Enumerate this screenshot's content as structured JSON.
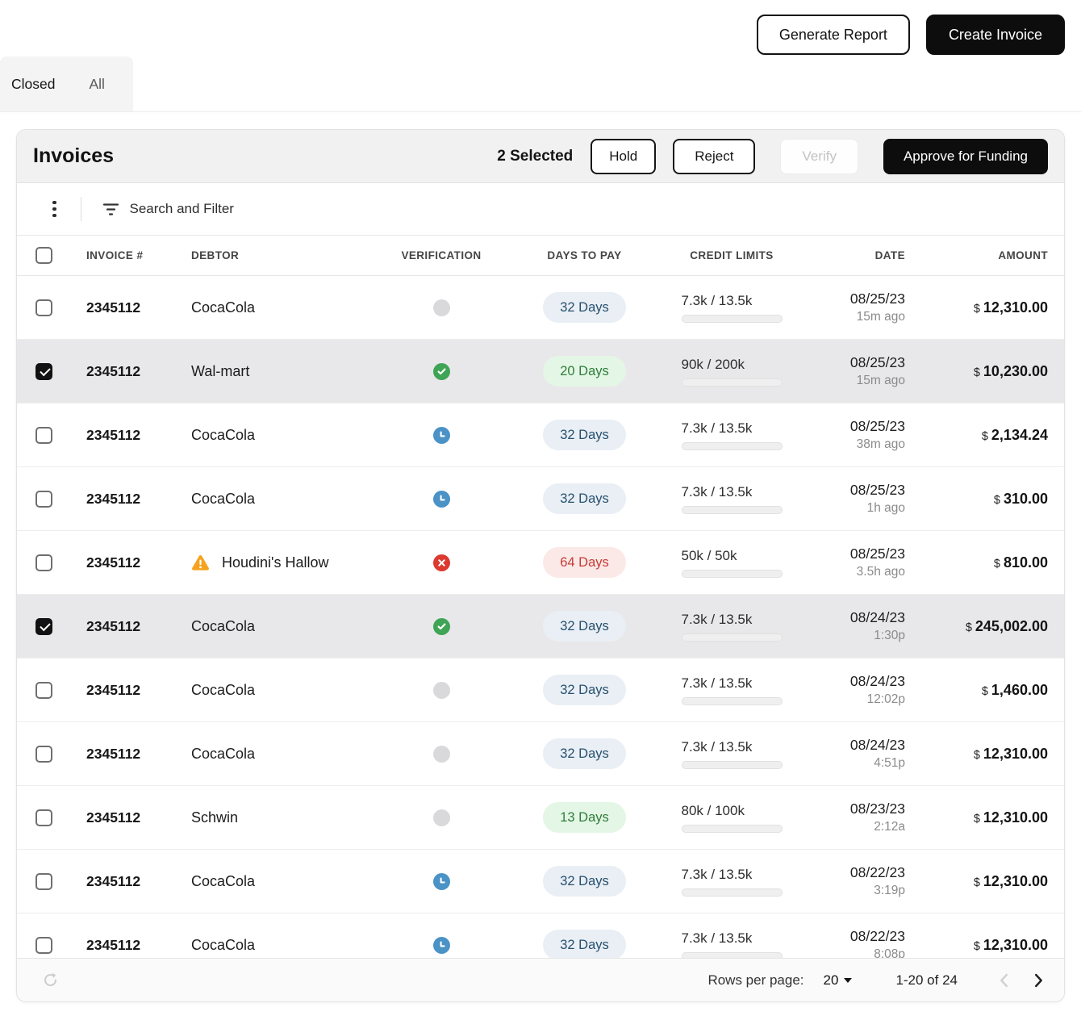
{
  "header_actions": {
    "generate_report": "Generate Report",
    "create_invoice": "Create Invoice"
  },
  "tabs": {
    "closed": "Closed",
    "all": "All"
  },
  "panel": {
    "title": "Invoices",
    "selection_status": "2 Selected",
    "hold_label": "Hold",
    "reject_label": "Reject",
    "verify_label": "Verify",
    "approve_label": "Approve for Funding"
  },
  "toolbar": {
    "search_and_filter": "Search and Filter"
  },
  "table": {
    "columns": [
      "INVOICE #",
      "DEBTOR",
      "VERIFICATION",
      "DAYS TO PAY",
      "CREDIT LIMITS",
      "DATE",
      "AMOUNT"
    ],
    "currency_symbol": "$",
    "rows": [
      {
        "checked": false,
        "invoice": "2345112",
        "debtor": "CocaCola",
        "warning": false,
        "verification": "unverified",
        "days": "32 Days",
        "days_variant": "neutral",
        "credit": "7.3k / 13.5k",
        "credit_pct": 54,
        "credit_variant": "green",
        "date": "08/25/23",
        "time": "15m ago",
        "amount": "12,310.00"
      },
      {
        "checked": true,
        "invoice": "2345112",
        "debtor": "Wal-mart",
        "warning": false,
        "verification": "verified",
        "days": "20 Days",
        "days_variant": "good",
        "credit": "90k / 200k",
        "credit_pct": 45,
        "credit_variant": "green",
        "date": "08/25/23",
        "time": "15m ago",
        "amount": "10,230.00"
      },
      {
        "checked": false,
        "invoice": "2345112",
        "debtor": "CocaCola",
        "warning": false,
        "verification": "pending",
        "days": "32 Days",
        "days_variant": "neutral",
        "credit": "7.3k / 13.5k",
        "credit_pct": 54,
        "credit_variant": "green",
        "date": "08/25/23",
        "time": "38m ago",
        "amount": "2,134.24"
      },
      {
        "checked": false,
        "invoice": "2345112",
        "debtor": "CocaCola",
        "warning": false,
        "verification": "pending",
        "days": "32 Days",
        "days_variant": "neutral",
        "credit": "7.3k / 13.5k",
        "credit_pct": 54,
        "credit_variant": "green",
        "date": "08/25/23",
        "time": "1h ago",
        "amount": "310.00"
      },
      {
        "checked": false,
        "invoice": "2345112",
        "debtor": "Houdini's Hallow",
        "warning": true,
        "verification": "rejected",
        "days": "64 Days",
        "days_variant": "bad",
        "credit": "50k / 50k",
        "credit_pct": 100,
        "credit_variant": "red",
        "date": "08/25/23",
        "time": "3.5h ago",
        "amount": "810.00"
      },
      {
        "checked": true,
        "invoice": "2345112",
        "debtor": "CocaCola",
        "warning": false,
        "verification": "verified",
        "days": "32 Days",
        "days_variant": "neutral",
        "credit": "7.3k / 13.5k",
        "credit_pct": 54,
        "credit_variant": "green",
        "date": "08/24/23",
        "time": "1:30p",
        "amount": "245,002.00"
      },
      {
        "checked": false,
        "invoice": "2345112",
        "debtor": "CocaCola",
        "warning": false,
        "verification": "unverified",
        "days": "32 Days",
        "days_variant": "neutral",
        "credit": "7.3k / 13.5k",
        "credit_pct": 54,
        "credit_variant": "green",
        "date": "08/24/23",
        "time": "12:02p",
        "amount": "1,460.00"
      },
      {
        "checked": false,
        "invoice": "2345112",
        "debtor": "CocaCola",
        "warning": false,
        "verification": "unverified",
        "days": "32 Days",
        "days_variant": "neutral",
        "credit": "7.3k / 13.5k",
        "credit_pct": 54,
        "credit_variant": "green",
        "date": "08/24/23",
        "time": "4:51p",
        "amount": "12,310.00"
      },
      {
        "checked": false,
        "invoice": "2345112",
        "debtor": "Schwin",
        "warning": false,
        "verification": "unverified",
        "days": "13 Days",
        "days_variant": "good",
        "credit": "80k / 100k",
        "credit_pct": 80,
        "credit_variant": "orange",
        "date": "08/23/23",
        "time": "2:12a",
        "amount": "12,310.00"
      },
      {
        "checked": false,
        "invoice": "2345112",
        "debtor": "CocaCola",
        "warning": false,
        "verification": "pending",
        "days": "32 Days",
        "days_variant": "neutral",
        "credit": "7.3k / 13.5k",
        "credit_pct": 54,
        "credit_variant": "green",
        "date": "08/22/23",
        "time": "3:19p",
        "amount": "12,310.00"
      },
      {
        "checked": false,
        "invoice": "2345112",
        "debtor": "CocaCola",
        "warning": false,
        "verification": "pending",
        "days": "32 Days",
        "days_variant": "neutral",
        "credit": "7.3k / 13.5k",
        "credit_pct": 54,
        "credit_variant": "green",
        "date": "08/22/23",
        "time": "8:08p",
        "amount": "12,310.00"
      }
    ]
  },
  "footer": {
    "rows_per_page_label": "Rows per page:",
    "rows_per_page_value": "20",
    "range_label": "1-20 of 24"
  },
  "colors": {
    "primary_button": "#0d0d0d",
    "header_bg": "#f1f1f2",
    "selected_row_bg": "#e8e8ea",
    "status_verified": "#3fa455",
    "status_pending": "#4b92c6",
    "status_rejected": "#dc392f",
    "status_unverified": "#d9d9db",
    "warning_orange": "#f5a31f",
    "bar_green": "#55b662",
    "bar_orange": "#efa133",
    "bar_red": "#f57f7f",
    "pill_neutral_text": "#26506e",
    "pill_good_text": "#2e7d3a",
    "pill_bad_text": "#c63b32"
  }
}
